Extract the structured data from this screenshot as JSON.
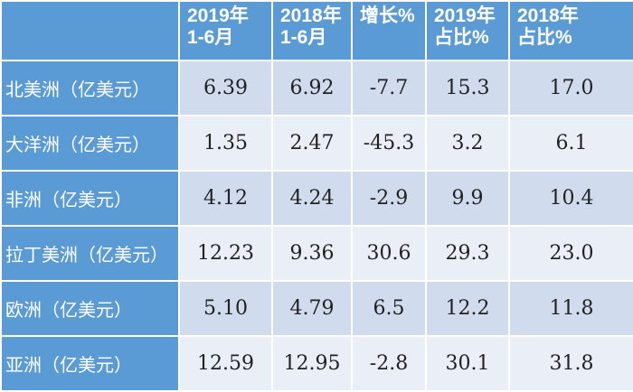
{
  "table": {
    "columns": [
      {
        "line1": "2019年",
        "line2": "1-6月"
      },
      {
        "line1": "2018年",
        "line2": "1-6月"
      },
      {
        "line1": "增长%",
        "line2": ""
      },
      {
        "line1": "2019年",
        "line2": "占比%"
      },
      {
        "line1": "2018年",
        "line2": "占比%"
      }
    ],
    "rows": [
      {
        "label": "北美洲（亿美元）",
        "cells": [
          "6.39",
          "6.92",
          "-7.7",
          "15.3",
          "17.0"
        ]
      },
      {
        "label": "大洋洲（亿美元）",
        "cells": [
          "1.35",
          "2.47",
          "-45.3",
          "3.2",
          "6.1"
        ]
      },
      {
        "label": "非洲（亿美元）",
        "cells": [
          "4.12",
          "4.24",
          "-2.9",
          "9.9",
          "10.4"
        ]
      },
      {
        "label": "拉丁美洲（亿美元）",
        "cells": [
          "12.23",
          "9.36",
          "30.6",
          "29.3",
          "23.0"
        ]
      },
      {
        "label": "欧洲（亿美元）",
        "cells": [
          "5.10",
          "4.79",
          "6.5",
          "12.2",
          "11.8"
        ]
      },
      {
        "label": "亚洲（亿美元）",
        "cells": [
          "12.59",
          "12.95",
          "-2.8",
          "30.1",
          "31.8"
        ]
      }
    ]
  }
}
